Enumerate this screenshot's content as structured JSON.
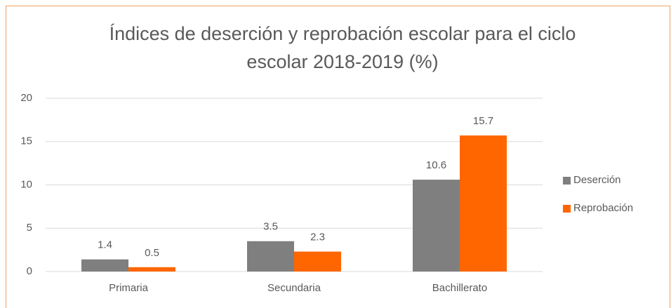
{
  "chart_data": {
    "type": "bar",
    "title": "Índices de deserción y reprobación escolar para el ciclo escolar 2018-2019 (%)",
    "categories": [
      "Primaria",
      "Secundaria",
      "Bachillerato"
    ],
    "series": [
      {
        "name": "Deserción",
        "color": "#7f7f7f",
        "values": [
          1.4,
          3.5,
          10.6
        ]
      },
      {
        "name": "Reprobación",
        "color": "#ff6600",
        "values": [
          0.5,
          2.3,
          15.7
        ]
      }
    ],
    "ylim": [
      0,
      20
    ],
    "yticks": [
      0,
      5,
      10,
      15,
      20
    ],
    "grid": true,
    "legend": "right"
  }
}
